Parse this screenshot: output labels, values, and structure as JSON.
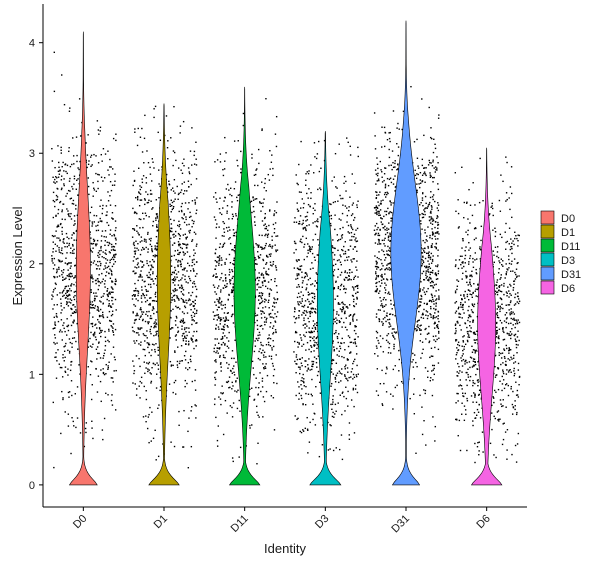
{
  "chart_data": {
    "type": "violin",
    "title": "",
    "xlabel": "Identity",
    "ylabel": "Expression Level",
    "ylim": [
      -0.2,
      4.35
    ],
    "yticks": [
      0,
      1,
      2,
      3,
      4
    ],
    "grid": false,
    "legend_position": "right",
    "categories": [
      "D0",
      "D1",
      "D11",
      "D3",
      "D31",
      "D6"
    ],
    "legend": [
      "D0",
      "D1",
      "D11",
      "D3",
      "D31",
      "D6"
    ],
    "series": [
      {
        "name": "D0",
        "color": "#F8766D",
        "max": 4.1,
        "median": 1.95,
        "spread": 0.62,
        "zero_fraction": 0.38,
        "top_width": 0.22,
        "zero_width": 0.43
      },
      {
        "name": "D1",
        "color": "#B79F00",
        "max": 3.45,
        "median": 1.85,
        "spread": 0.62,
        "zero_fraction": 0.42,
        "top_width": 0.21,
        "zero_width": 0.47
      },
      {
        "name": "D11",
        "color": "#00BA38",
        "max": 3.6,
        "median": 1.75,
        "spread": 0.6,
        "zero_fraction": 0.46,
        "top_width": 0.33,
        "zero_width": 0.47
      },
      {
        "name": "D3",
        "color": "#00BFC4",
        "max": 3.2,
        "median": 1.65,
        "spread": 0.6,
        "zero_fraction": 0.42,
        "top_width": 0.25,
        "zero_width": 0.48
      },
      {
        "name": "D31",
        "color": "#619CFF",
        "max": 4.2,
        "median": 2.1,
        "spread": 0.55,
        "zero_fraction": 0.28,
        "top_width": 0.47,
        "zero_width": 0.42
      },
      {
        "name": "D6",
        "color": "#F564E3",
        "max": 3.05,
        "median": 1.45,
        "spread": 0.55,
        "zero_fraction": 0.44,
        "top_width": 0.28,
        "zero_width": 0.47
      }
    ]
  }
}
